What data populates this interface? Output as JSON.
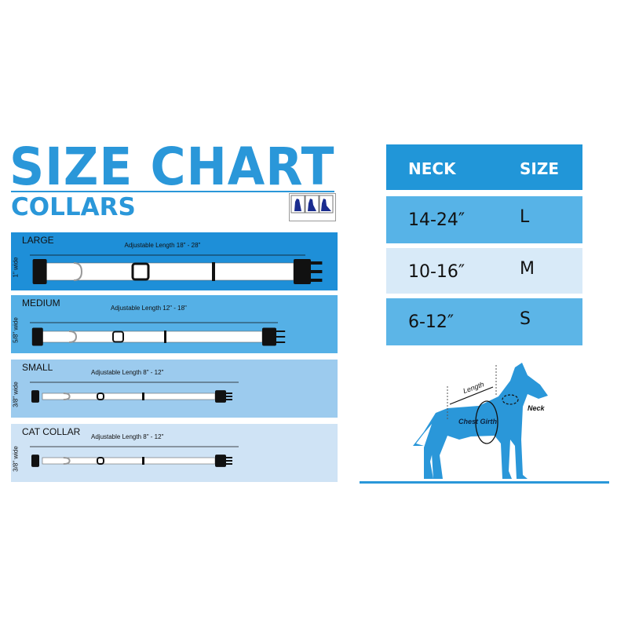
{
  "title": "SIZE CHART",
  "subtitle": "COLLARS",
  "colors": {
    "brand": "#2a97d9",
    "large": "#1e8fd8",
    "medium": "#55b0e6",
    "small": "#9ccbee",
    "cat": "#cfe3f5"
  },
  "collars": [
    {
      "name": "LARGE",
      "length": "Adjustable Length 18\" - 28\"",
      "width": "1\" wide"
    },
    {
      "name": "MEDIUM",
      "length": "Adjustable Length 12\" - 18\"",
      "width": "5/8\" wide"
    },
    {
      "name": "SMALL",
      "length": "Adjustable Length 8\" - 12\"",
      "width": "3/8\" wide"
    },
    {
      "name": "CAT COLLAR",
      "length": "Adjustable Length 8\" - 12\"",
      "width": "3/8\" wide"
    }
  ],
  "table": {
    "headers": [
      "NECK",
      "SIZE"
    ],
    "rows": [
      {
        "neck": "14-24″",
        "size": "L"
      },
      {
        "neck": "10-16″",
        "size": "M"
      },
      {
        "neck": "6-12″",
        "size": "S"
      }
    ]
  },
  "diagram": {
    "length": "Length",
    "chest": "Chest Girth",
    "neck": "Neck"
  }
}
